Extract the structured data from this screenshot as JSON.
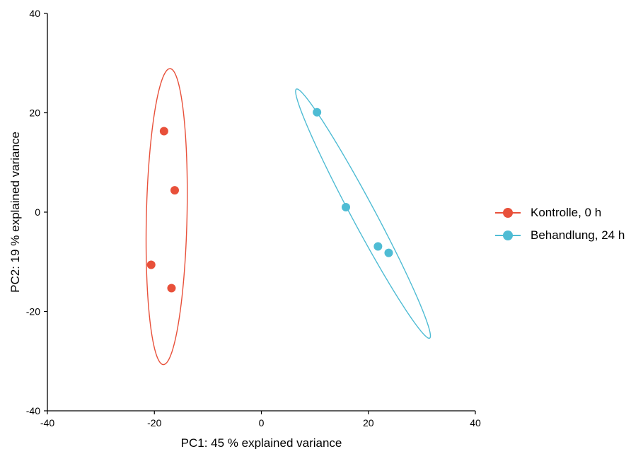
{
  "chart_data": {
    "type": "scatter",
    "xlabel": "PC1: 45 % explained variance",
    "ylabel": "PC2: 19 % explained variance",
    "xlim": [
      -40,
      40
    ],
    "ylim": [
      -40,
      40
    ],
    "xticks": [
      -40,
      -20,
      0,
      20,
      40
    ],
    "yticks": [
      -40,
      -20,
      0,
      20,
      40
    ],
    "grid": false,
    "legend_position": "right",
    "series": [
      {
        "name": "Kontrolle, 0 h",
        "color": "#e8503a",
        "points": [
          {
            "x": -18.2,
            "y": 16.3
          },
          {
            "x": -16.2,
            "y": 4.4
          },
          {
            "x": -20.6,
            "y": -10.6
          },
          {
            "x": -16.8,
            "y": -15.3
          }
        ],
        "ellipse": {
          "cx": -17.7,
          "cy": -0.9,
          "semi_major": 29.8,
          "semi_minor": 3.8,
          "angle_deg": 88.8
        }
      },
      {
        "name": "Behandlung, 24 h",
        "color": "#4fbcd4",
        "points": [
          {
            "x": 10.4,
            "y": 20.1
          },
          {
            "x": 15.8,
            "y": 1.0
          },
          {
            "x": 21.8,
            "y": -6.9
          },
          {
            "x": 23.8,
            "y": -8.2
          }
        ],
        "ellipse": {
          "cx": 19.0,
          "cy": -0.3,
          "semi_major": 28.0,
          "semi_minor": 2.2,
          "angle_deg": -63.6
        }
      }
    ]
  }
}
